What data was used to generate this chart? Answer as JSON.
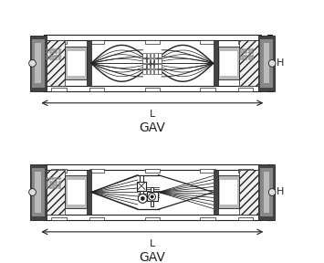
{
  "bg_color": "#ffffff",
  "lc": "#222222",
  "gd1": "#1a1a1a",
  "gd2": "#444444",
  "gm": "#888888",
  "gl": "#bbbbbb",
  "gll": "#dddddd",
  "glll": "#f0f0f0",
  "label_L": "L",
  "label_H": "H",
  "label_GAV": "GAV",
  "fig_width": 3.55,
  "fig_height": 2.88,
  "dpi": 100
}
